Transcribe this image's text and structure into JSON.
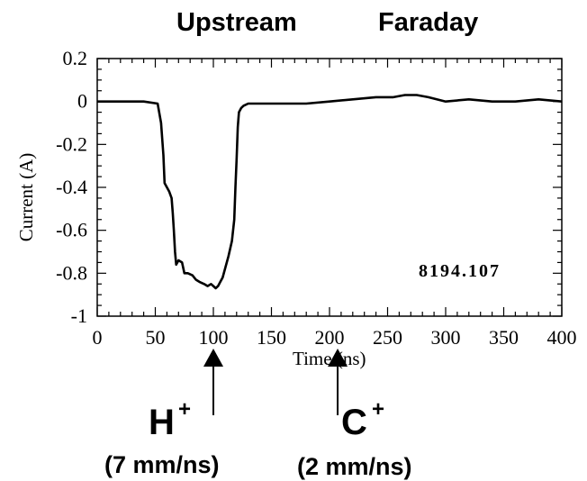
{
  "chart_data": {
    "type": "line",
    "title_left": "Upstream",
    "title_right": "Faraday",
    "xlabel": "Time (ns)",
    "ylabel": "Current (A)",
    "xlim": [
      0,
      400
    ],
    "ylim": [
      -1,
      0.2
    ],
    "x_ticks": [
      "0",
      "50",
      "100",
      "150",
      "200",
      "250",
      "300",
      "350",
      "400"
    ],
    "y_ticks": [
      "0.2",
      "0",
      "-0.2",
      "-0.4",
      "-0.6",
      "-0.8",
      "-1"
    ],
    "run_label": "8194.107",
    "series": [
      {
        "x": [
          0,
          20,
          40,
          52,
          55,
          57,
          58,
          60,
          62,
          64,
          65,
          66,
          67,
          68,
          70,
          73,
          75,
          78,
          82,
          85,
          88,
          92,
          95,
          98,
          100,
          102,
          104,
          106,
          108,
          110,
          113,
          116,
          118,
          119,
          120,
          121,
          122,
          124,
          126,
          130,
          140,
          160,
          180,
          200,
          220,
          240,
          255,
          265,
          275,
          285,
          300,
          320,
          340,
          360,
          380,
          400
        ],
        "y": [
          0.0,
          0.0,
          0.0,
          -0.01,
          -0.1,
          -0.25,
          -0.38,
          -0.4,
          -0.42,
          -0.45,
          -0.52,
          -0.6,
          -0.7,
          -0.76,
          -0.74,
          -0.75,
          -0.8,
          -0.8,
          -0.81,
          -0.83,
          -0.84,
          -0.85,
          -0.86,
          -0.85,
          -0.86,
          -0.87,
          -0.86,
          -0.84,
          -0.82,
          -0.78,
          -0.72,
          -0.65,
          -0.55,
          -0.4,
          -0.27,
          -0.12,
          -0.05,
          -0.03,
          -0.02,
          -0.01,
          -0.01,
          -0.01,
          -0.01,
          0.0,
          0.01,
          0.02,
          0.02,
          0.03,
          0.03,
          0.02,
          0.0,
          0.01,
          0.0,
          0.0,
          0.01,
          0.0
        ]
      }
    ],
    "annotations": [
      {
        "x": 100,
        "ion": "H",
        "charge": "+",
        "speed": "(7 mm/ns)"
      },
      {
        "x": 207,
        "ion": "C",
        "charge": "+",
        "speed": "(2 mm/ns)"
      }
    ]
  }
}
